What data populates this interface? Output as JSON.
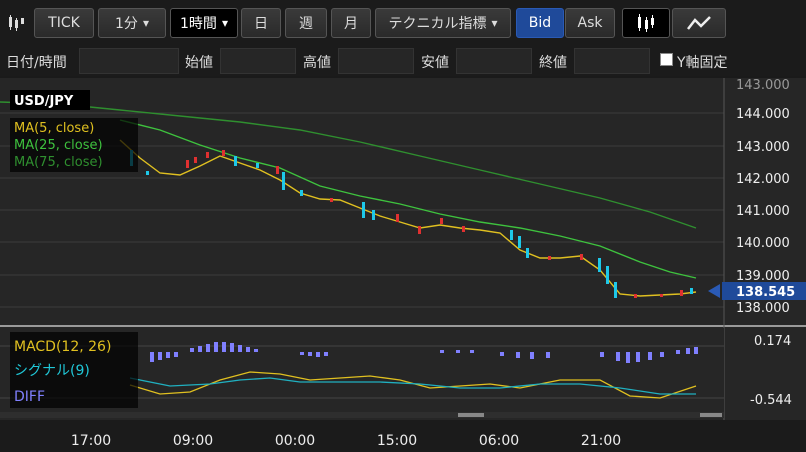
{
  "toolbar": {
    "candle_icon": "candlestick-icon",
    "tick": "TICK",
    "minute": "1分",
    "hour": "1時間",
    "day": "日",
    "week": "週",
    "month": "月",
    "technical": "テクニカル指標",
    "bid": "Bid",
    "ask": "Ask",
    "line_icon": "line-chart-icon"
  },
  "ohlc": {
    "datetime_label": "日付/時間",
    "open_label": "始値",
    "high_label": "高値",
    "low_label": "安値",
    "close_label": "終値",
    "yaxis_fix_label": "Y軸固定"
  },
  "chart": {
    "symbol": "USD/JPY",
    "ma5": "MA(5, close)",
    "ma25": "MA(25, close)",
    "ma75": "MA(75, close)",
    "current_price": "138.545",
    "price_ticks": [
      "143.000",
      "144.000",
      "143.000",
      "142.000",
      "141.000",
      "140.000",
      "139.000",
      "138.000"
    ],
    "macd_label": "MACD(12, 26)",
    "signal_label": "シグナル(9)",
    "diff_label": "DIFF",
    "macd_high": "0.174",
    "macd_low": "-0.544",
    "time_labels": [
      "17:00",
      "09:00",
      "00:00",
      "15:00",
      "06:00",
      "21:00"
    ],
    "colors": {
      "ma5": "#e0c020",
      "ma25": "#3ec23e",
      "ma75": "#2f8f2f",
      "up": "#1ec8e8",
      "down": "#e03030",
      "price_marker": "#1f4a9a",
      "macd_bars": "#8080ff"
    }
  }
}
